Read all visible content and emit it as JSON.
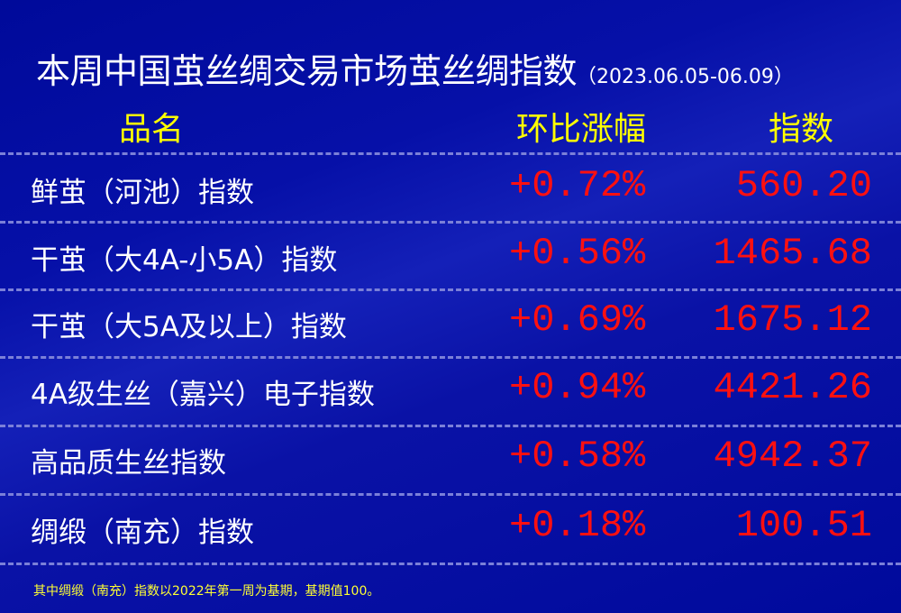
{
  "title": {
    "main": "本周中国茧丝绸交易市场茧丝绸指数",
    "date": "（2023.06.05-06.09）"
  },
  "headers": {
    "name": "品名",
    "change": "环比涨幅",
    "index": "指数"
  },
  "rows": [
    {
      "name": "鲜茧（河池）指数",
      "change": "+0.72%",
      "index": "560.20"
    },
    {
      "name": "干茧（大4A-小5A）指数",
      "change": "+0.56%",
      "index": "1465.68"
    },
    {
      "name": "干茧（大5A及以上）指数",
      "change": "+0.69%",
      "index": "1675.12"
    },
    {
      "name": "4A级生丝（嘉兴）电子指数",
      "change": "+0.94%",
      "index": "4421.26"
    },
    {
      "name": "高品质生丝指数",
      "change": "+0.58%",
      "index": "4942.37"
    },
    {
      "name": "绸缎（南充）指数",
      "change": "+0.18%",
      "index": "100.51"
    }
  ],
  "footnote": "其中绸缎（南充）指数以2022年第一周为基期，基期值100。",
  "colors": {
    "background": "#000a9c",
    "header": "#ffff00",
    "value": "#ff1010",
    "text": "#ffffff"
  }
}
